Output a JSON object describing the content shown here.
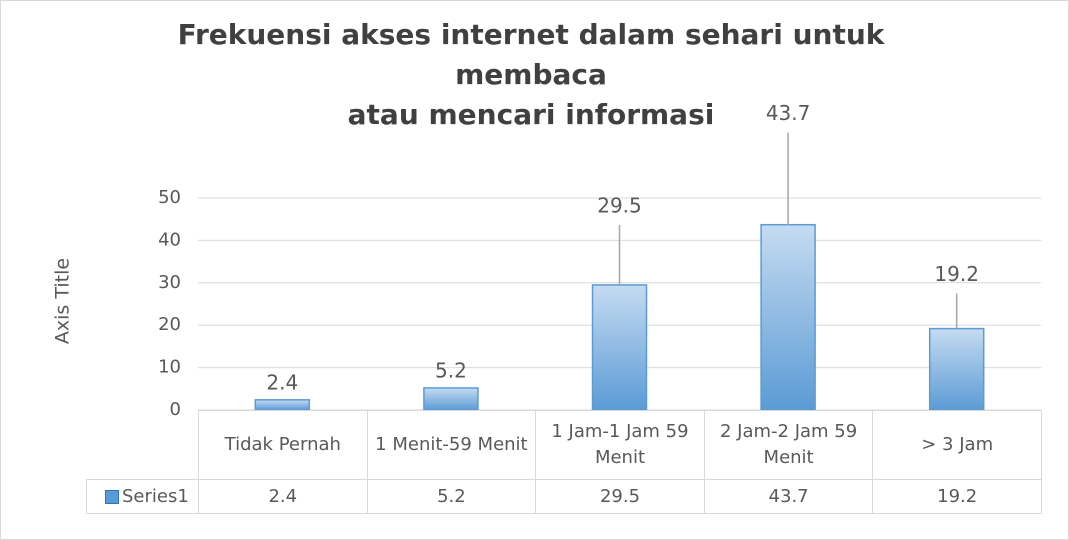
{
  "chart_data": {
    "type": "bar",
    "title": "Frekuensi akses internet dalam sehari untuk\nmembaca\natau mencari informasi",
    "y_axis_title": "Axis Title",
    "categories": [
      "Tidak Pernah",
      "1 Menit-59 Menit",
      "1 Jam-1 Jam 59 Menit",
      "2 Jam-2 Jam 59 Menit",
      "> 3 Jam"
    ],
    "series": [
      {
        "name": "Series1",
        "color": "#5b9bd5",
        "values": [
          2.4,
          5.2,
          29.5,
          43.7,
          19.2
        ]
      }
    ],
    "ylim": [
      0,
      50
    ],
    "yticks": [
      0,
      10,
      20,
      30,
      40,
      50
    ],
    "grid": true,
    "data_table": true
  }
}
